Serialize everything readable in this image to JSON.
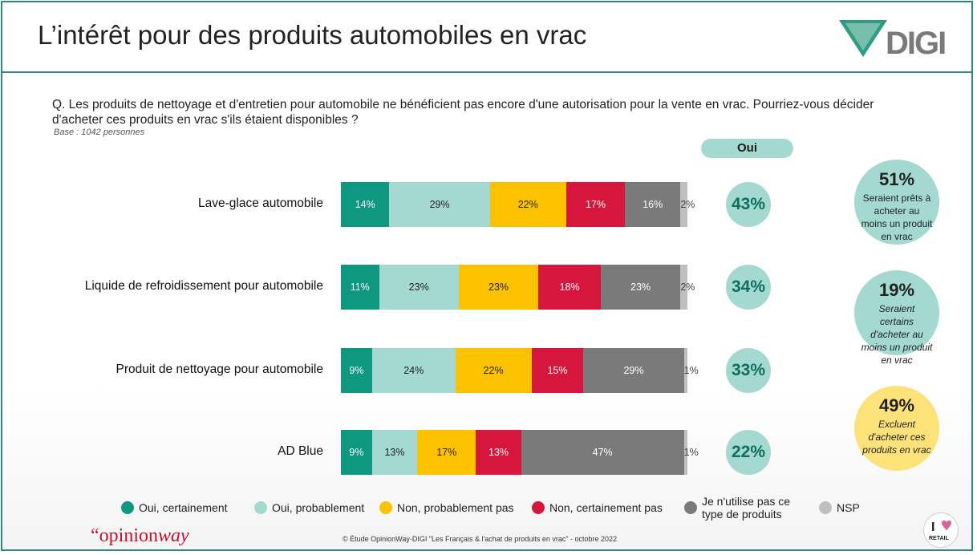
{
  "title": "L’intérêt pour des produits automobiles en vrac",
  "brand": "DIGI",
  "question": "Q. Les produits de nettoyage et d'entretien pour automobile ne bénéficient pas encore d'une autorisation pour la vente en vrac. Pourriez-vous décider d'acheter ces produits en vrac s'ils étaient disponibles ?",
  "base": "Base : 1042 personnes",
  "oui_header": "Oui",
  "colors": {
    "oui_certainement": "#0f9880",
    "oui_probablement": "#a3d9d0",
    "non_probablement_pas": "#fcc200",
    "non_certainement_pas": "#d6163c",
    "je_nutilise_pas": "#7a7a7a",
    "nsp": "#bfbfbf"
  },
  "chart_data": {
    "type": "bar",
    "orientation": "horizontal-stacked-100",
    "categories": [
      "Lave-glace automobile",
      "Liquide de refroidissement pour automobile",
      "Produit de nettoyage pour automobile",
      "AD Blue"
    ],
    "series": [
      {
        "name": "Oui, certainement",
        "values": [
          14,
          11,
          9,
          9
        ]
      },
      {
        "name": "Oui, probablement",
        "values": [
          29,
          23,
          24,
          13
        ]
      },
      {
        "name": "Non, probablement pas",
        "values": [
          22,
          23,
          22,
          17
        ]
      },
      {
        "name": "Non, certainement pas",
        "values": [
          17,
          18,
          15,
          13
        ]
      },
      {
        "name": "Je n'utilise pas ce type de produits",
        "values": [
          16,
          23,
          29,
          47
        ]
      },
      {
        "name": "NSP",
        "values": [
          2,
          2,
          1,
          1
        ]
      }
    ],
    "labels": [
      [
        "14%",
        "29%",
        "22%",
        "17%",
        "16%",
        "2%"
      ],
      [
        "11%",
        "23%",
        "23%",
        "18%",
        "23%",
        "2%"
      ],
      [
        "9%",
        "24%",
        "22%",
        "15%",
        "29%",
        "1%"
      ],
      [
        "9%",
        "13%",
        "17%",
        "13%",
        "47%",
        "1%"
      ]
    ],
    "oui_totals": [
      "43%",
      "34%",
      "33%",
      "22%"
    ],
    "legend_position": "bottom"
  },
  "bubbles": [
    {
      "value": "51%",
      "text": "Seraient prêts à acheter au moins un produit en vrac",
      "color": "#a3d9d0"
    },
    {
      "value": "19%",
      "text": "Seraient certains d'acheter au moins un produit en vrac",
      "color": "#a3d9d0"
    },
    {
      "value": "49%",
      "text": "Excluent d'acheter ces produits en vrac",
      "color": "#fde27a"
    }
  ],
  "legend": [
    "Oui, certainement",
    "Oui, probablement",
    "Non, probablement pas",
    "Non, certainement pas",
    "Je n'utilise pas ce type de produits",
    "NSP"
  ],
  "footer": {
    "logo_opinionway_prefix": "“opinion",
    "logo_opinionway_suffix": "way",
    "credit": "© Étude OpinionWay-DIGI \"Les Français & l'achat de produits en vrac\" - octobre 2022",
    "retail_logo": "I ♥ RETAIL"
  }
}
